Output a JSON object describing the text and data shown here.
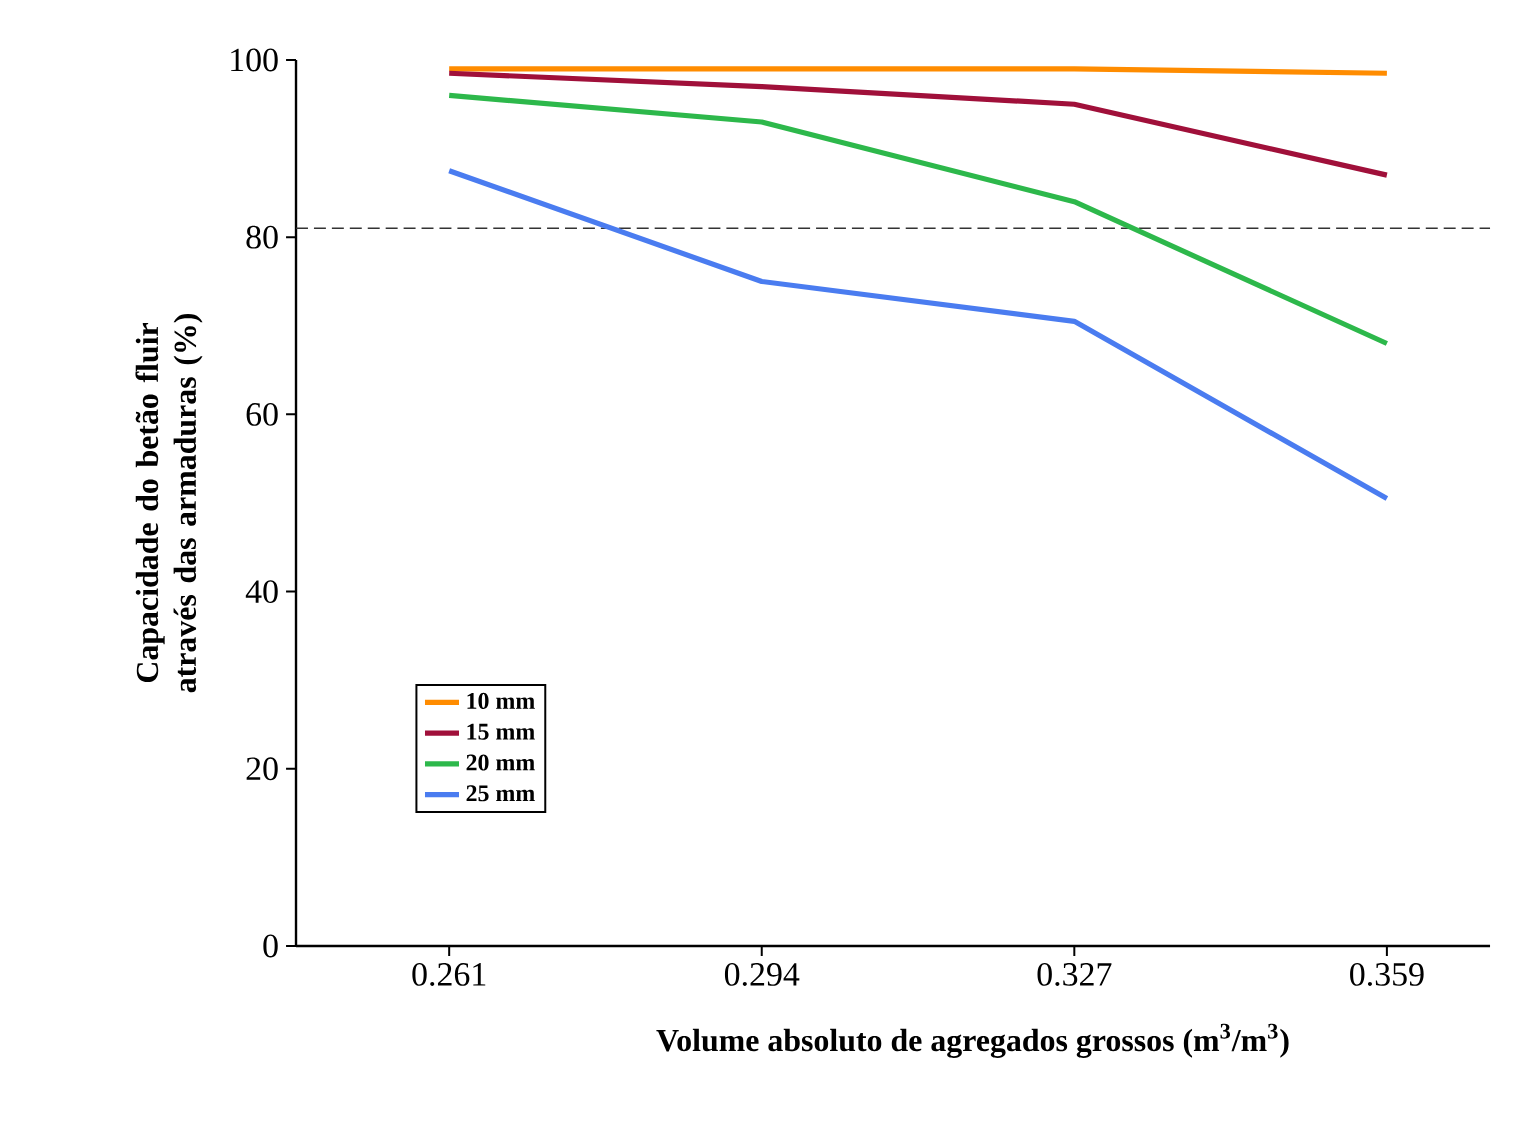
{
  "chart_data": {
    "type": "line",
    "xlabel": "Volume absoluto de agregados grossos (m$^{3}$/m$^{3}$)",
    "ylabel": "Capacidade do betão fluir através das armaduras (%)",
    "categories": [
      "0.261",
      "0.294",
      "0.327",
      "0.359"
    ],
    "series": [
      {
        "name": "10 mm",
        "color": "#ff8c00",
        "values": [
          99,
          99,
          99,
          98.5
        ]
      },
      {
        "name": "15 mm",
        "color": "#a0103a",
        "values": [
          98.5,
          97,
          95,
          87
        ]
      },
      {
        "name": "20 mm",
        "color": "#2db84b",
        "values": [
          96,
          93,
          84,
          68
        ]
      },
      {
        "name": "25 mm",
        "color": "#4a7cf0",
        "values": [
          87.5,
          75,
          70.5,
          50.5
        ]
      }
    ],
    "ylim": [
      0,
      100
    ],
    "yticks": [
      0,
      20,
      40,
      60,
      80,
      100
    ],
    "ref_lines": [
      {
        "axis": "y",
        "value": 81,
        "color": "#333333",
        "line_style": "dashed"
      }
    ],
    "legend": "bottom left",
    "grid": false,
    "marker": "none",
    "line_style": "solid"
  }
}
